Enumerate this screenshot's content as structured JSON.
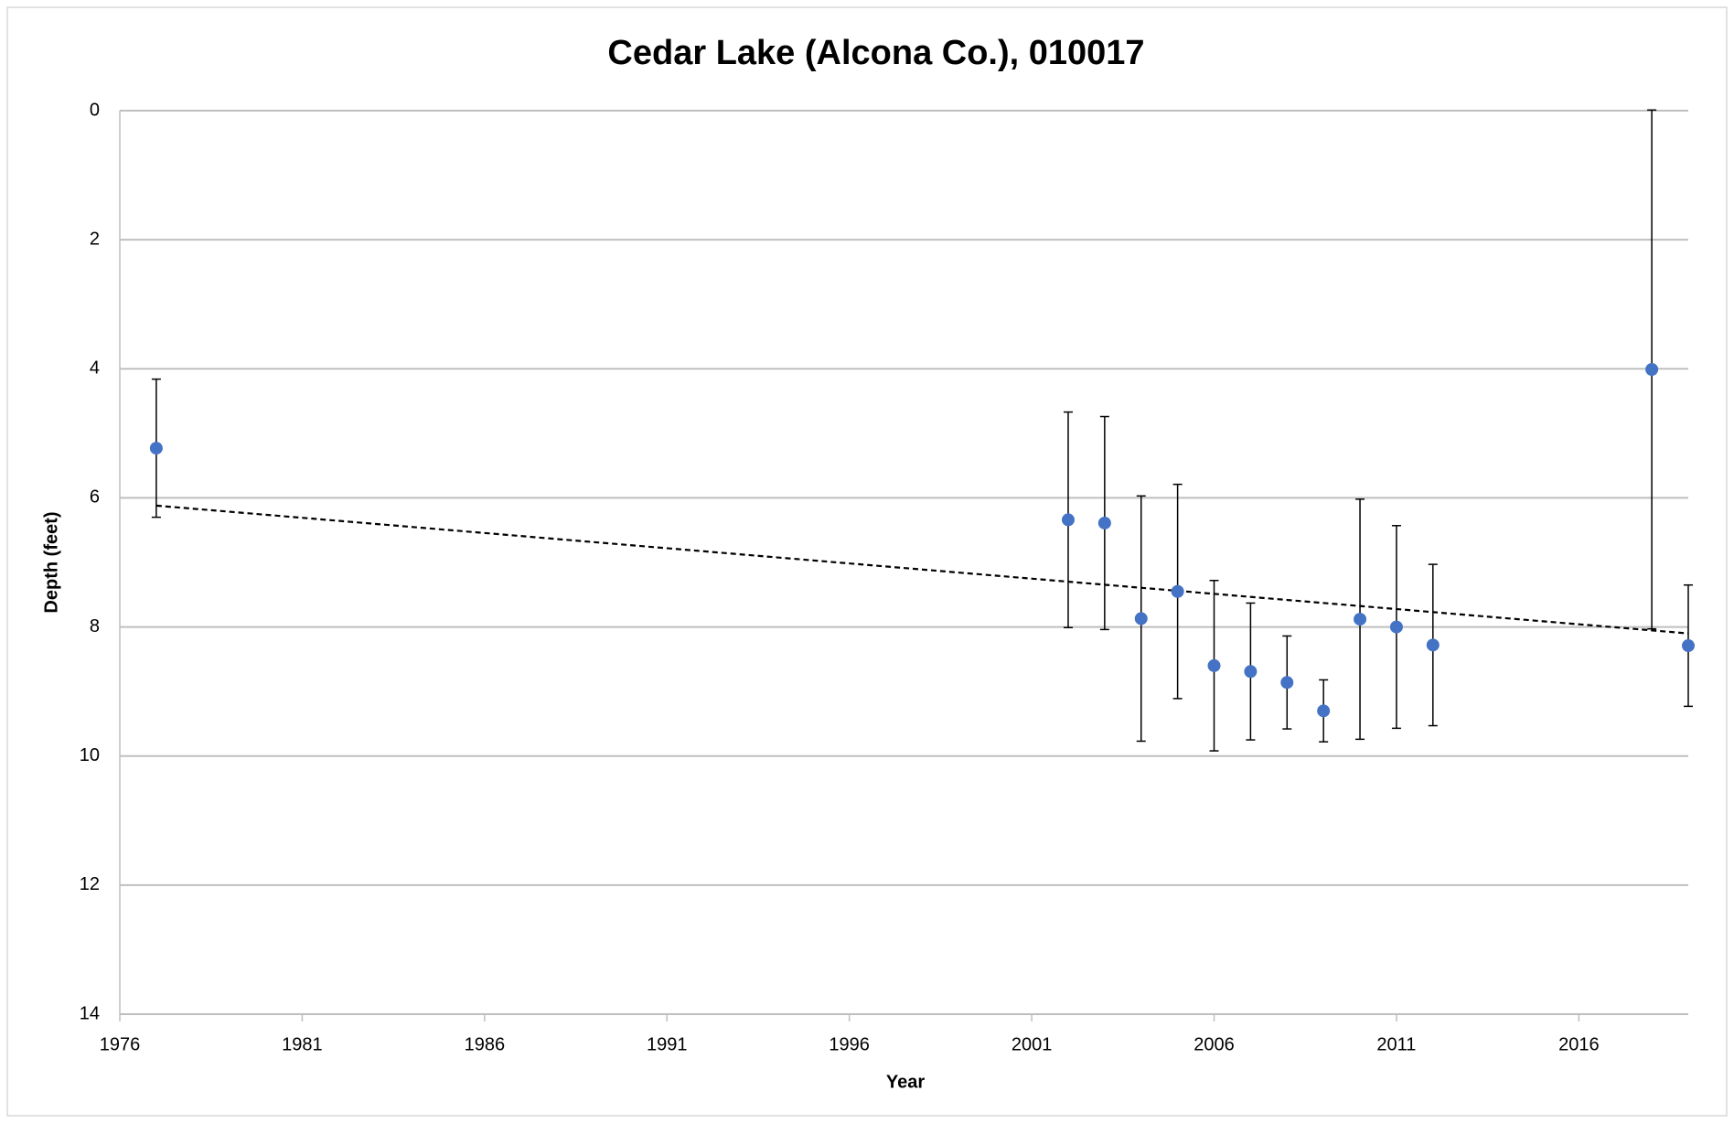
{
  "chart_data": {
    "type": "scatter",
    "title": "Cedar Lake (Alcona Co.), 010017",
    "x_label": "Year",
    "y_label": "Depth (feet)",
    "xlim": [
      1976,
      2019
    ],
    "xticks": [
      1976,
      1981,
      1986,
      1991,
      1996,
      2001,
      2006,
      2011,
      2016
    ],
    "ylim": [
      0,
      14
    ],
    "yticks": [
      0,
      2,
      4,
      6,
      8,
      10,
      12,
      14
    ],
    "y_inverted": true,
    "grid": true,
    "series": [
      {
        "color": "#4472c4",
        "x": [
          1977,
          2002,
          2003,
          2004,
          2005,
          2006,
          2007,
          2008,
          2009,
          2010,
          2011,
          2012,
          2018,
          2019
        ],
        "values": [
          5.23,
          6.34,
          6.39,
          7.87,
          7.45,
          8.6,
          8.69,
          8.86,
          9.3,
          7.88,
          8.0,
          8.28,
          4.01,
          8.29
        ],
        "errors": [
          1.07,
          1.67,
          1.65,
          1.9,
          1.66,
          1.32,
          1.06,
          0.72,
          0.48,
          1.86,
          1.57,
          1.25,
          4.02,
          0.94
        ]
      }
    ],
    "trendline": {
      "color": "#000000",
      "x": [
        1977,
        2019
      ],
      "values": [
        6.12,
        8.1
      ]
    }
  }
}
